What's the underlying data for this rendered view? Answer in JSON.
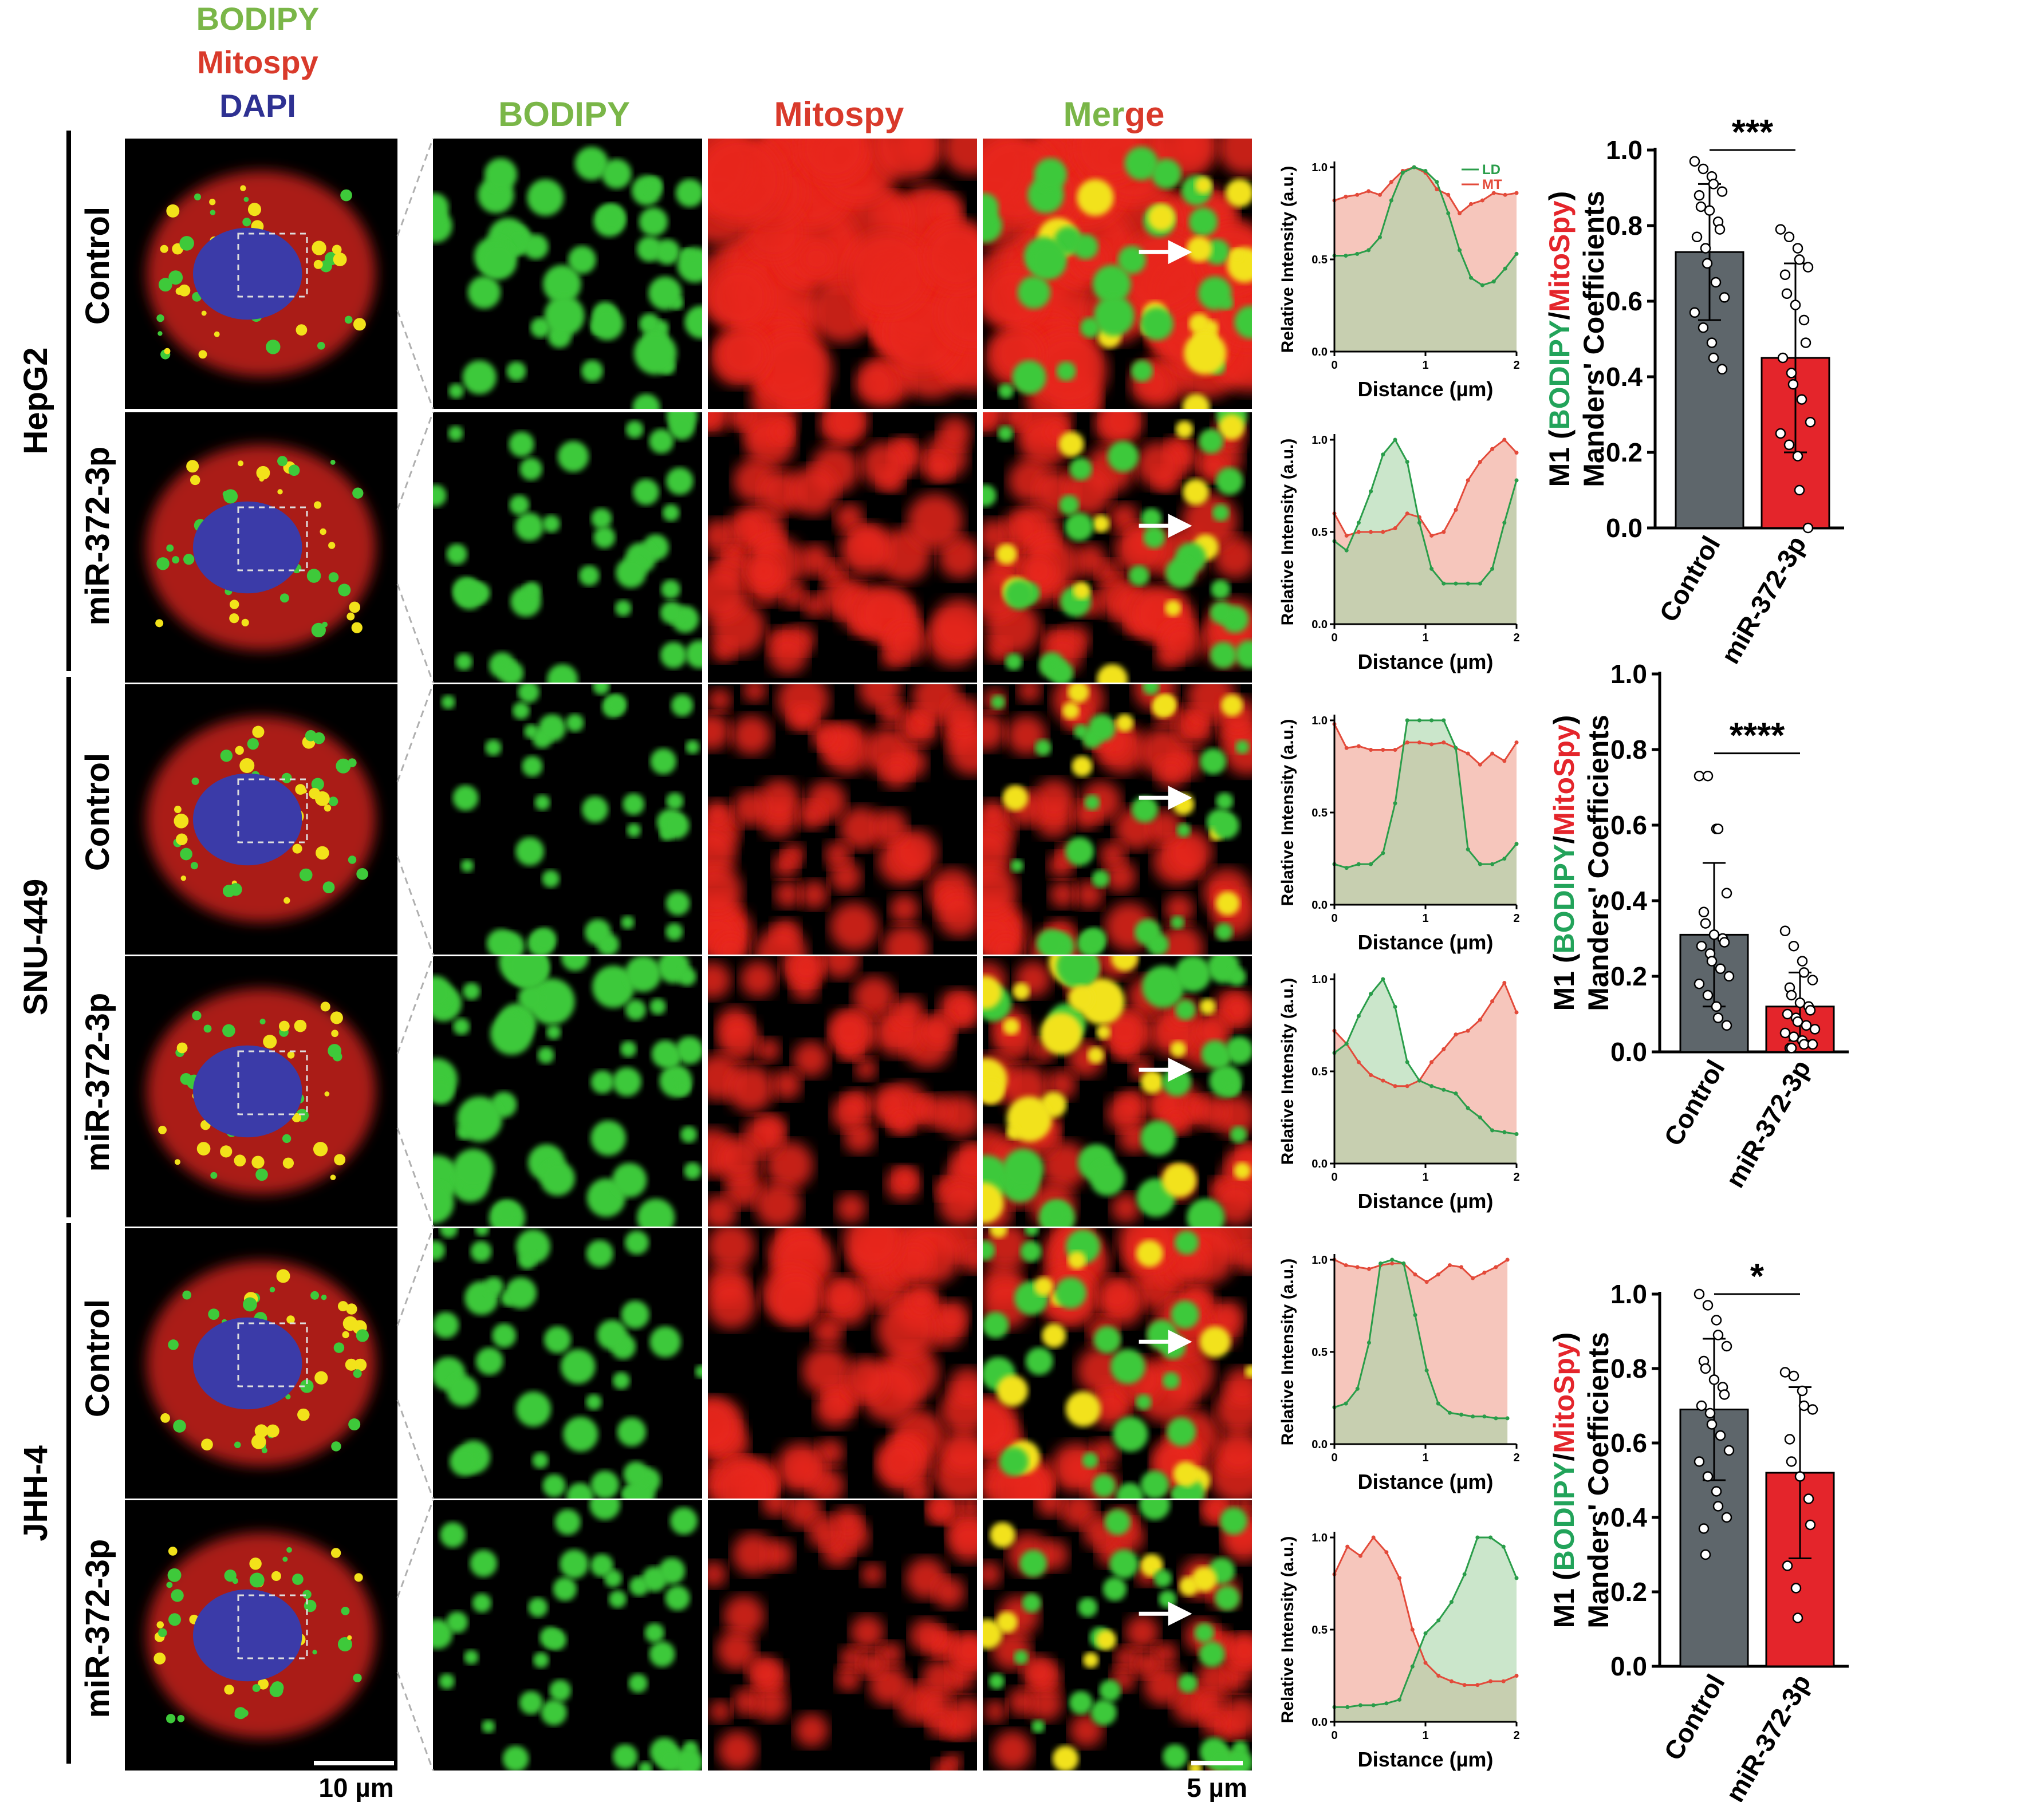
{
  "legend_stain": {
    "bodipy": "BODIPY",
    "mitospy": "Mitospy",
    "dapi": "DAPI"
  },
  "column_headers": {
    "bodipy": "BODIPY",
    "mitospy": "Mitospy",
    "merge_part1": "Mer",
    "merge_part2": "ge"
  },
  "colors": {
    "green": "#7ab648",
    "red": "#d93a2b",
    "blue": "#2e3192",
    "bar_gray": "#5e666b",
    "bar_red": "#e4252b",
    "ld_line": "#2a9d4a",
    "mt_line": "#e34a3a",
    "ld_fill": "#a8d5a8",
    "mt_fill": "#f3b3a5",
    "overlap_fill": "#b7c49a"
  },
  "cell_lines": [
    "HepG2",
    "SNU-449",
    "JHH-4"
  ],
  "conditions": [
    "Control",
    "miR-372-3p"
  ],
  "scale_bars": {
    "left": "10 µm",
    "right": "5 µm"
  },
  "profile_plots": {
    "ylabel": "Relative Intensity (a.u.)",
    "xlabel": "Distance (µm)",
    "yticks": [
      "0.0",
      "0.5",
      "1.0"
    ],
    "xticks": [
      "0",
      "1",
      "2"
    ],
    "legend": {
      "ld": "LD",
      "mt": "MT"
    },
    "profiles": [
      {
        "id": "hepg2-control",
        "ld": [
          0.52,
          0.52,
          0.53,
          0.55,
          0.62,
          0.82,
          0.97,
          1.0,
          0.98,
          0.92,
          0.75,
          0.55,
          0.4,
          0.36,
          0.38,
          0.45,
          0.53
        ],
        "mt": [
          0.82,
          0.84,
          0.85,
          0.87,
          0.85,
          0.92,
          0.98,
          1.0,
          0.97,
          0.88,
          0.85,
          0.75,
          0.8,
          0.82,
          0.86,
          0.85,
          0.86
        ]
      },
      {
        "id": "hepg2-mir",
        "ld": [
          0.45,
          0.4,
          0.55,
          0.72,
          0.92,
          1.0,
          0.88,
          0.55,
          0.3,
          0.22,
          0.22,
          0.22,
          0.22,
          0.3,
          0.55,
          0.78
        ],
        "mt": [
          0.6,
          0.48,
          0.5,
          0.5,
          0.5,
          0.52,
          0.6,
          0.58,
          0.48,
          0.5,
          0.62,
          0.78,
          0.88,
          0.95,
          1.0,
          0.93
        ]
      },
      {
        "id": "snu-control",
        "ld": [
          0.22,
          0.2,
          0.22,
          0.22,
          0.28,
          0.55,
          1.0,
          1.0,
          1.0,
          1.0,
          0.85,
          0.3,
          0.22,
          0.22,
          0.25,
          0.33
        ],
        "mt": [
          0.98,
          0.85,
          0.86,
          0.84,
          0.84,
          0.84,
          0.88,
          0.88,
          0.87,
          0.88,
          0.85,
          0.82,
          0.76,
          0.82,
          0.78,
          0.88
        ]
      },
      {
        "id": "snu-mir",
        "ld": [
          0.6,
          0.65,
          0.8,
          0.92,
          1.0,
          0.85,
          0.55,
          0.45,
          0.42,
          0.4,
          0.38,
          0.3,
          0.25,
          0.18,
          0.17,
          0.16
        ],
        "mt": [
          0.72,
          0.65,
          0.55,
          0.48,
          0.45,
          0.42,
          0.42,
          0.45,
          0.55,
          0.62,
          0.7,
          0.72,
          0.78,
          0.88,
          0.98,
          0.82
        ]
      },
      {
        "id": "jhh-control",
        "ld": [
          0.2,
          0.22,
          0.3,
          0.55,
          0.98,
          1.0,
          0.98,
          0.7,
          0.4,
          0.22,
          0.17,
          0.16,
          0.15,
          0.15,
          0.14,
          0.14
        ],
        "mt": [
          1.0,
          0.97,
          0.96,
          0.95,
          0.97,
          0.98,
          0.98,
          0.92,
          0.88,
          0.92,
          0.97,
          0.96,
          0.9,
          0.93,
          0.96,
          1.0
        ],
        "end": 1.9
      },
      {
        "id": "jhh-mir",
        "ld": [
          0.08,
          0.08,
          0.09,
          0.09,
          0.1,
          0.12,
          0.3,
          0.48,
          0.55,
          0.65,
          0.8,
          1.0,
          1.0,
          0.95,
          0.78
        ],
        "mt": [
          0.8,
          0.95,
          0.9,
          1.0,
          0.92,
          0.78,
          0.5,
          0.32,
          0.25,
          0.22,
          0.2,
          0.2,
          0.22,
          0.22,
          0.25
        ]
      }
    ]
  },
  "chart_data": [
    {
      "type": "bar",
      "id": "hepg2-manders",
      "categories": [
        "Control",
        "miR-372-3p"
      ],
      "values": [
        0.73,
        0.45
      ],
      "error": [
        0.18,
        0.25
      ],
      "ylim": [
        0,
        1.0
      ],
      "yticks": [
        "0.0",
        "0.2",
        "0.4",
        "0.6",
        "0.8",
        "1.0"
      ],
      "ylabel_line1_prefix": "M1 (",
      "ylabel_line1_bodipy": "BODIPY",
      "ylabel_line1_slash": "/",
      "ylabel_line1_mito": "MitoSpy",
      "ylabel_line1_suffix": ")",
      "ylabel_line2": "Manders' Coefficients",
      "significance": "***",
      "points": [
        [
          0.97,
          0.95,
          0.93,
          0.91,
          0.89,
          0.88,
          0.85,
          0.84,
          0.81,
          0.79,
          0.77,
          0.74,
          0.7,
          0.65,
          0.61,
          0.57,
          0.53,
          0.49,
          0.45,
          0.42
        ],
        [
          0.79,
          0.77,
          0.74,
          0.71,
          0.69,
          0.67,
          0.62,
          0.59,
          0.55,
          0.49,
          0.45,
          0.41,
          0.38,
          0.34,
          0.28,
          0.25,
          0.22,
          0.19,
          0.1,
          0.0
        ]
      ]
    },
    {
      "type": "bar",
      "id": "snu449-manders",
      "categories": [
        "Control",
        "miR-372-3p"
      ],
      "values": [
        0.31,
        0.12
      ],
      "error": [
        0.19,
        0.09
      ],
      "ylim": [
        0,
        1.0
      ],
      "yticks": [
        "0.0",
        "0.2",
        "0.4",
        "0.6",
        "0.8",
        "1.0"
      ],
      "ylabel_line1_prefix": "M1 (",
      "ylabel_line1_bodipy": "BODIPY",
      "ylabel_line1_slash": "/",
      "ylabel_line1_mito": "MitoSpy",
      "ylabel_line1_suffix": ")",
      "ylabel_line2": "Manders' Coefficients",
      "significance": "****",
      "points": [
        [
          0.73,
          0.73,
          0.59,
          0.59,
          0.42,
          0.37,
          0.34,
          0.31,
          0.3,
          0.29,
          0.28,
          0.26,
          0.24,
          0.22,
          0.2,
          0.18,
          0.15,
          0.12,
          0.09,
          0.07
        ],
        [
          0.32,
          0.28,
          0.24,
          0.21,
          0.19,
          0.17,
          0.15,
          0.13,
          0.12,
          0.11,
          0.1,
          0.09,
          0.08,
          0.07,
          0.06,
          0.05,
          0.04,
          0.03,
          0.02,
          0.02,
          0.01,
          0.01
        ]
      ]
    },
    {
      "type": "bar",
      "id": "jhh4-manders",
      "categories": [
        "Control",
        "miR-372-3p"
      ],
      "values": [
        0.69,
        0.52
      ],
      "error": [
        0.19,
        0.23
      ],
      "ylim": [
        0,
        1.0
      ],
      "yticks": [
        "0.0",
        "0.2",
        "0.4",
        "0.6",
        "0.8",
        "1.0"
      ],
      "ylabel_line1_prefix": "M1 (",
      "ylabel_line1_bodipy": "BODIPY",
      "ylabel_line1_slash": "/",
      "ylabel_line1_mito": "MitoSpy",
      "ylabel_line1_suffix": ")",
      "ylabel_line2": "Manders' Coefficients",
      "significance": "*",
      "points": [
        [
          1.0,
          0.97,
          0.93,
          0.89,
          0.86,
          0.82,
          0.8,
          0.77,
          0.75,
          0.73,
          0.7,
          0.68,
          0.65,
          0.62,
          0.58,
          0.55,
          0.51,
          0.47,
          0.43,
          0.4,
          0.37,
          0.3
        ],
        [
          0.79,
          0.78,
          0.74,
          0.7,
          0.69,
          0.61,
          0.55,
          0.51,
          0.45,
          0.38,
          0.27,
          0.21,
          0.13
        ]
      ]
    }
  ]
}
